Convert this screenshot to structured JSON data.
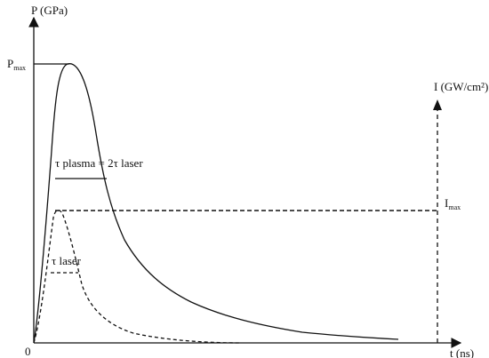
{
  "axes": {
    "left_y_label": "P (GPa)",
    "right_y_label": "I (GW/cm²)",
    "x_label": "t (ns)",
    "origin_label": "0"
  },
  "labels": {
    "p_max_main": "P",
    "p_max_sub": "max",
    "i_max_main": "I",
    "i_max_sub": "max",
    "tau_plasma": "τ plasma = 2τ laser",
    "tau_laser": "τ laser"
  },
  "curves": {
    "pressure": {
      "style": "solid",
      "color": "#111111"
    },
    "laser_intensity": {
      "style": "dashed",
      "color": "#111111"
    }
  },
  "colors": {
    "ink": "#111111",
    "background": "#ffffff"
  }
}
